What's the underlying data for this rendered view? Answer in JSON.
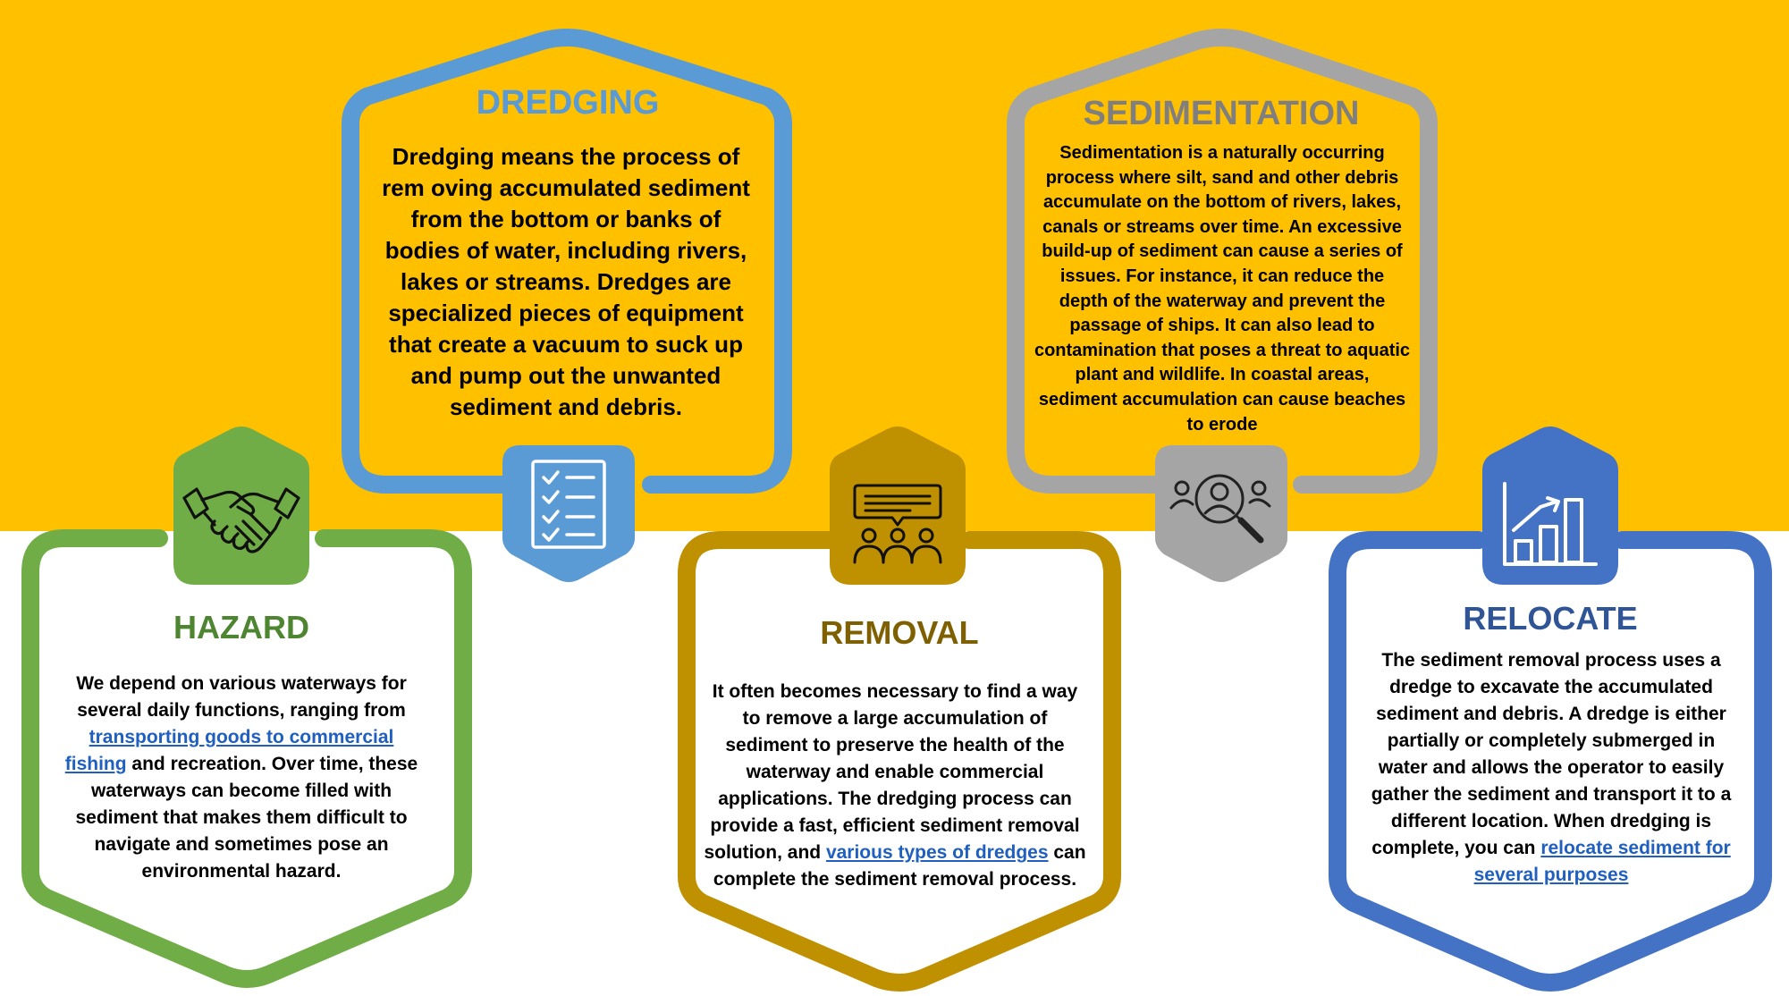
{
  "colors": {
    "yellow_band": "#FFC000",
    "white": "#FFFFFF",
    "blue": "#5B9BD5",
    "gray": "#A5A5A5",
    "green": "#70AD47",
    "gold": "#BF9000",
    "royal_blue": "#4472C4",
    "title_green": "#4E8531",
    "title_gold": "#7F6000",
    "title_navy": "#2F5597",
    "link": "#1F5FBF"
  },
  "panels": {
    "dredging": {
      "title": "DREDGING",
      "icon": "checklist-icon",
      "text": "Dredging means the process of rem oving accumulated sediment from the bottom or banks of bodies of water, including rivers, lakes or streams. Dredges are specialized pieces of equipment that create a vacuum to suck up and pump out the unwanted sediment and debris."
    },
    "sedimentation": {
      "title": "SEDIMENTATION",
      "icon": "search-people-icon",
      "text": "Sedimentation is a naturally occurring process where silt, sand and other debris accumulate on the bottom of rivers, lakes, canals or streams over time. An excessive build-up of sediment can cause a series of issues. For instance, it can reduce the depth of the waterway and prevent the passage of ships. It can also lead to contamination that poses a threat to aquatic plant and wildlife. In coastal areas, sediment accumulation can cause beaches to erode"
    },
    "hazard": {
      "title": "HAZARD",
      "icon": "handshake-icon",
      "text_before": "We depend on various waterways for several daily functions, ranging from ",
      "link": "transporting goods to commercial fishing",
      "text_after": " and recreation. Over time, these waterways can become filled with sediment that makes them difficult to navigate and sometimes pose an environmental hazard."
    },
    "removal": {
      "title": "REMOVAL",
      "icon": "presentation-group-icon",
      "text_before": "It often becomes necessary to find a way to remove a large accumulation of sediment to preserve the health of the waterway and enable commercial applications. The dredging process can provide a fast, efficient sediment removal solution, and ",
      "link": "various types of dredges",
      "text_after": " can complete the sediment removal process."
    },
    "relocate": {
      "title": "RELOCATE",
      "icon": "bar-chart-growth-icon",
      "text_before": "The sediment removal process uses a dredge to excavate the accumulated sediment and debris. A dredge is either partially or completely submerged in water and allows the operator to easily gather the sediment and transport it to a different location. When dredging is complete, you can ",
      "link": "relocate sediment for several purposes",
      "text_after": ""
    }
  }
}
